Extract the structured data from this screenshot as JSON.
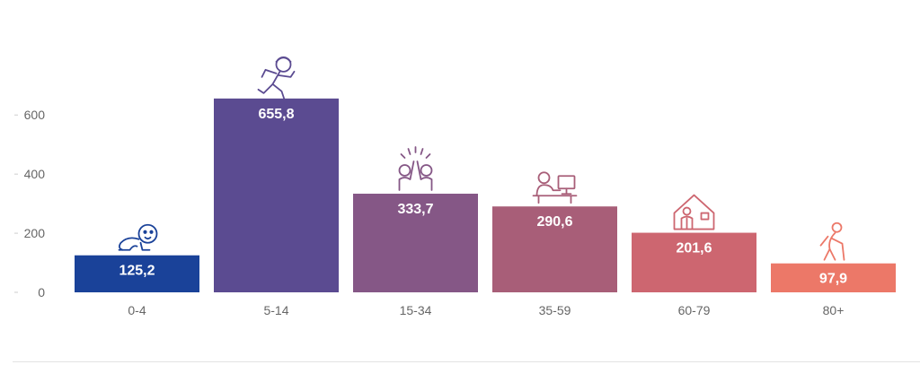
{
  "chart_data": {
    "type": "bar",
    "categories": [
      "0-4",
      "5-14",
      "15-34",
      "35-59",
      "60-79",
      "80+"
    ],
    "values": [
      125.2,
      655.8,
      333.7,
      290.6,
      201.6,
      97.9
    ],
    "value_labels": [
      "125,2",
      "655,8",
      "333,7",
      "290,6",
      "201,6",
      "97,9"
    ],
    "bar_colors": [
      "#1a4299",
      "#5b4b91",
      "#855786",
      "#a85e78",
      "#cd6670",
      "#ec7868"
    ],
    "icons": [
      "crawling-baby-icon",
      "running-child-icon",
      "high-five-icon",
      "office-worker-icon",
      "house-elder-icon",
      "elderly-cane-icon"
    ],
    "yticks": [
      0,
      200,
      400,
      600
    ],
    "ytick_labels": [
      "0",
      "200",
      "400",
      "600"
    ],
    "ylim": [
      0,
      700
    ],
    "title": "",
    "xlabel": "",
    "ylabel": "",
    "grid": false,
    "legend": "none"
  }
}
